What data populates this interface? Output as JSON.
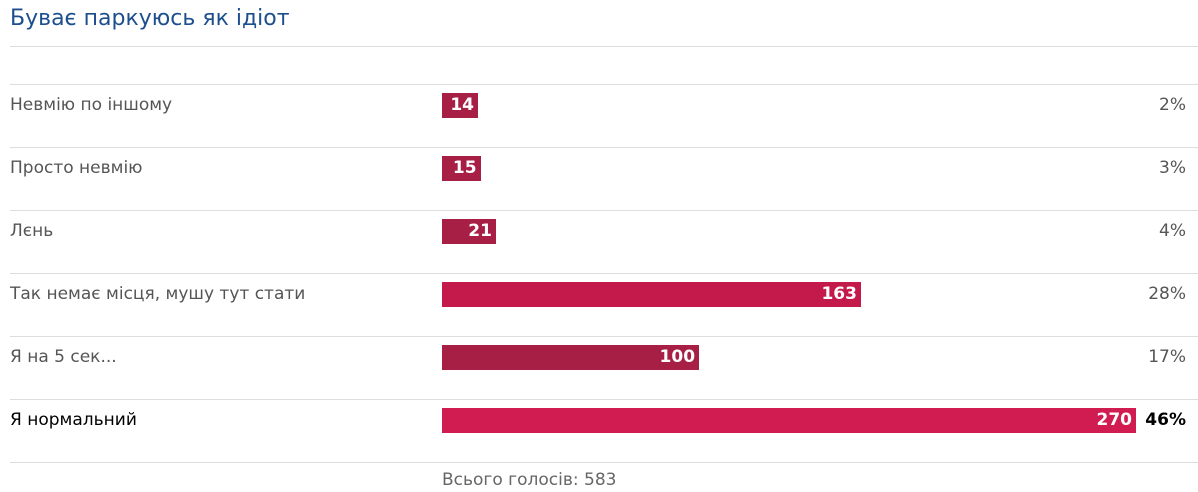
{
  "chart_data": {
    "type": "bar",
    "orientation": "horizontal",
    "title": "Буває паркуюсь як ідіот",
    "categories": [
      "Невмію по іншому",
      "Просто невмію",
      "Лєнь",
      "Так немає місця, мушу тут стати",
      "Я на 5 сек...",
      "Я нормальний"
    ],
    "values": [
      14,
      15,
      21,
      163,
      100,
      270
    ],
    "colors": [
      "#a71f45",
      "#a71f45",
      "#a71f45",
      "#c41a4b",
      "#a71f45",
      "#d01c50"
    ],
    "percent_labels": [
      "2%",
      "3%",
      "4%",
      "28%",
      "17%",
      "46%"
    ],
    "total_label": "Всього голосів:",
    "total": 583
  }
}
